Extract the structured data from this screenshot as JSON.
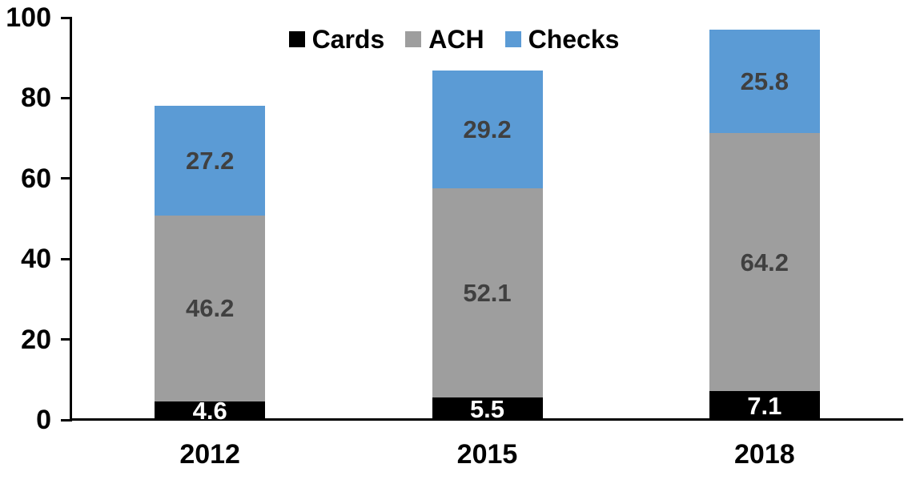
{
  "chart_data": {
    "type": "bar",
    "stacked": true,
    "title": "",
    "xlabel": "",
    "ylabel": "",
    "categories": [
      "2012",
      "2015",
      "2018"
    ],
    "series": [
      {
        "name": "Cards",
        "color": "#000000",
        "label_color": "#FFFFFF",
        "values": [
          4.6,
          5.5,
          7.1
        ]
      },
      {
        "name": "ACH",
        "color": "#9E9E9E",
        "label_color": "#404040",
        "values": [
          46.2,
          52.1,
          64.2
        ]
      },
      {
        "name": "Checks",
        "color": "#5B9BD5",
        "label_color": "#404040",
        "values": [
          27.2,
          29.2,
          25.8
        ]
      }
    ],
    "ylim": [
      0,
      100
    ],
    "yticks": [
      0,
      20,
      40,
      60,
      80,
      100
    ],
    "grid": false,
    "legend_position": "top",
    "legend_entries": [
      "Cards",
      "ACH",
      "Checks"
    ],
    "axis_color": "#000000",
    "value_labels_shown": true
  }
}
